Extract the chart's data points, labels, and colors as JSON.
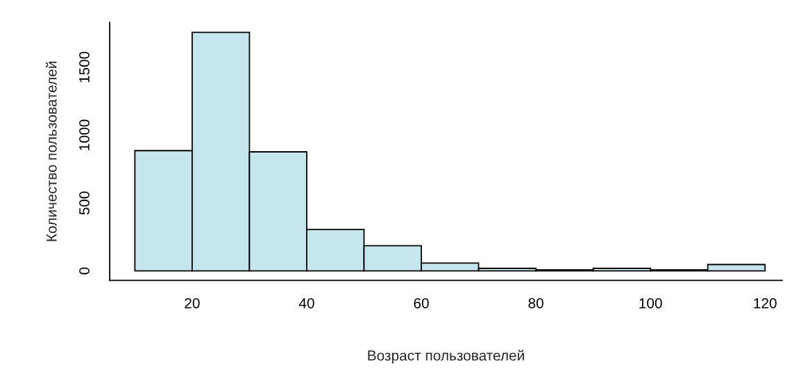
{
  "chart_data": {
    "type": "histogram",
    "xlabel": "Возраст пользователей",
    "ylabel": "Количество пользователей",
    "bins": [
      10,
      20,
      30,
      40,
      50,
      60,
      70,
      80,
      90,
      100,
      110,
      120
    ],
    "values": [
      886,
      1757,
      877,
      306,
      186,
      58,
      19,
      8,
      19,
      8,
      47
    ],
    "color": "#c6e6ee",
    "xlim": [
      5.6,
      123
    ],
    "ylim": [
      -70,
      1830
    ],
    "xticks": [
      20,
      40,
      60,
      80,
      100,
      120
    ],
    "yticks": [
      0,
      500,
      1000,
      1500
    ],
    "grid": false
  }
}
